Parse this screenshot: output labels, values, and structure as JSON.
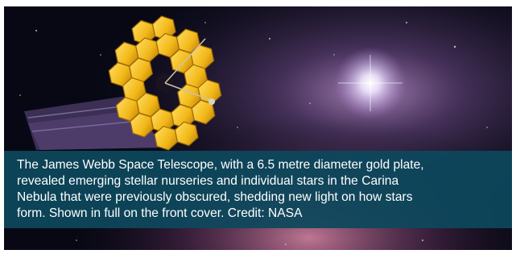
{
  "caption": {
    "lines": [
      "The James Webb Space Telescope, with a 6.5 metre diameter gold plate,",
      "revealed emerging stellar nurseries and individual stars in the Carina",
      "Nebula that were previously obscured, shedding new light on how stars",
      "form. Shown in full on the front cover. Credit: NASA"
    ]
  }
}
